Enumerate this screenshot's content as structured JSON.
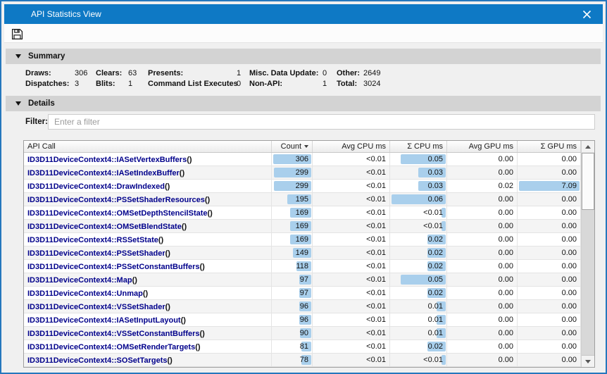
{
  "window": {
    "title": "API Statistics View"
  },
  "colors": {
    "titlebar": "#0e79c5",
    "window_border": "#2577bd",
    "window_bg": "#f0f0f0",
    "header_bg": "#d3d3d3",
    "bar_fill": "#a9cfec",
    "api_text": "#00008b"
  },
  "icons": {
    "close": "close-x",
    "save": "floppy-disk",
    "collapse": "triangle-down",
    "sort": "triangle-down",
    "scroll_up": "triangle-up",
    "scroll_down": "triangle-down"
  },
  "summary": {
    "header": "Summary",
    "stats": [
      {
        "label": "Draws:",
        "value": "306"
      },
      {
        "label": "Clears:",
        "value": "63"
      },
      {
        "label": "Presents:",
        "value": "1"
      },
      {
        "label": "Misc. Data Update:",
        "value": "0"
      },
      {
        "label": "Other:",
        "value": "2649"
      },
      {
        "label": "Dispatches:",
        "value": "3"
      },
      {
        "label": "Blits:",
        "value": "1"
      },
      {
        "label": "Command List Executes",
        "value": "0"
      },
      {
        "label": "Non-API:",
        "value": "1"
      },
      {
        "label": "Total:",
        "value": "3024"
      }
    ]
  },
  "details": {
    "header": "Details",
    "filter_label": "Filter:",
    "filter_placeholder": "Enter a filter",
    "filter_value": ""
  },
  "table": {
    "api_suffix": "()",
    "columns": [
      {
        "label": "API Call"
      },
      {
        "label": "Count",
        "sort": "desc"
      },
      {
        "label": "Avg CPU ms"
      },
      {
        "label": "Σ CPU ms"
      },
      {
        "label": "Avg GPU ms"
      },
      {
        "label": "Σ GPU ms"
      }
    ],
    "rows": [
      {
        "api": "ID3D11DeviceContext4::IASetVertexBuffers",
        "count": "306",
        "avg_cpu": "<0.01",
        "sum_cpu": "0.05",
        "avg_gpu": "0.00",
        "sum_gpu": "0.00"
      },
      {
        "api": "ID3D11DeviceContext4::IASetIndexBuffer",
        "count": "299",
        "avg_cpu": "<0.01",
        "sum_cpu": "0.03",
        "avg_gpu": "0.00",
        "sum_gpu": "0.00"
      },
      {
        "api": "ID3D11DeviceContext4::DrawIndexed",
        "count": "299",
        "avg_cpu": "<0.01",
        "sum_cpu": "0.03",
        "avg_gpu": "0.02",
        "sum_gpu": "7.09"
      },
      {
        "api": "ID3D11DeviceContext4::PSSetShaderResources",
        "count": "195",
        "avg_cpu": "<0.01",
        "sum_cpu": "0.06",
        "avg_gpu": "0.00",
        "sum_gpu": "0.00"
      },
      {
        "api": "ID3D11DeviceContext4::OMSetDepthStencilState",
        "count": "169",
        "avg_cpu": "<0.01",
        "sum_cpu": "<0.01",
        "avg_gpu": "0.00",
        "sum_gpu": "0.00"
      },
      {
        "api": "ID3D11DeviceContext4::OMSetBlendState",
        "count": "169",
        "avg_cpu": "<0.01",
        "sum_cpu": "<0.01",
        "avg_gpu": "0.00",
        "sum_gpu": "0.00"
      },
      {
        "api": "ID3D11DeviceContext4::RSSetState",
        "count": "169",
        "avg_cpu": "<0.01",
        "sum_cpu": "0.02",
        "avg_gpu": "0.00",
        "sum_gpu": "0.00"
      },
      {
        "api": "ID3D11DeviceContext4::PSSetShader",
        "count": "149",
        "avg_cpu": "<0.01",
        "sum_cpu": "0.02",
        "avg_gpu": "0.00",
        "sum_gpu": "0.00"
      },
      {
        "api": "ID3D11DeviceContext4::PSSetConstantBuffers",
        "count": "118",
        "avg_cpu": "<0.01",
        "sum_cpu": "0.02",
        "avg_gpu": "0.00",
        "sum_gpu": "0.00"
      },
      {
        "api": "ID3D11DeviceContext4::Map",
        "count": "97",
        "avg_cpu": "<0.01",
        "sum_cpu": "0.05",
        "avg_gpu": "0.00",
        "sum_gpu": "0.00"
      },
      {
        "api": "ID3D11DeviceContext4::Unmap",
        "count": "97",
        "avg_cpu": "<0.01",
        "sum_cpu": "0.02",
        "avg_gpu": "0.00",
        "sum_gpu": "0.00"
      },
      {
        "api": "ID3D11DeviceContext4::VSSetShader",
        "count": "96",
        "avg_cpu": "<0.01",
        "sum_cpu": "0.01",
        "avg_gpu": "0.00",
        "sum_gpu": "0.00"
      },
      {
        "api": "ID3D11DeviceContext4::IASetInputLayout",
        "count": "96",
        "avg_cpu": "<0.01",
        "sum_cpu": "0.01",
        "avg_gpu": "0.00",
        "sum_gpu": "0.00"
      },
      {
        "api": "ID3D11DeviceContext4::VSSetConstantBuffers",
        "count": "90",
        "avg_cpu": "<0.01",
        "sum_cpu": "0.01",
        "avg_gpu": "0.00",
        "sum_gpu": "0.00"
      },
      {
        "api": "ID3D11DeviceContext4::OMSetRenderTargets",
        "count": "81",
        "avg_cpu": "<0.01",
        "sum_cpu": "0.02",
        "avg_gpu": "0.00",
        "sum_gpu": "0.00"
      },
      {
        "api": "ID3D11DeviceContext4::SOSetTargets",
        "count": "78",
        "avg_cpu": "<0.01",
        "sum_cpu": "<0.01",
        "avg_gpu": "0.00",
        "sum_gpu": "0.00"
      }
    ]
  }
}
